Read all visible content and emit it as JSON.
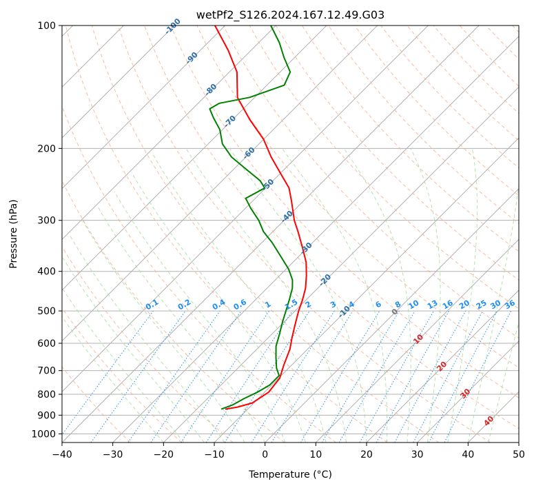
{
  "chart_data": {
    "type": "line",
    "title": "wetPf2_S126.2024.167.12.49.G03",
    "xlabel": "Temperature (°C)",
    "ylabel": "Pressure (hPa)",
    "xlim": [
      -40,
      50
    ],
    "ylim": [
      1050,
      100
    ],
    "y_scale": "log",
    "x_ticks": [
      -40,
      -30,
      -20,
      -10,
      0,
      10,
      20,
      30,
      40,
      50
    ],
    "y_ticks": [
      1000,
      900,
      800,
      700,
      600,
      500,
      400,
      300,
      200,
      100
    ],
    "grid": true,
    "colors": {
      "temperature": "#ff0000",
      "dewpoint": "#008000",
      "isotherm": "#9e9e9e",
      "dry_adiabat": "#f4a582",
      "moist_adiabat": "#a1d99b",
      "mixing_ratio": "#1f8ef0",
      "dry_adiabat_label": "#d62728",
      "isotherm_label": "#2b6ea8"
    },
    "series": [
      {
        "name": "Temperature",
        "color": "#ff0000",
        "points": [
          {
            "p": 870,
            "t": -14.4
          },
          {
            "p": 860,
            "t": -12.4
          },
          {
            "p": 840,
            "t": -10.3
          },
          {
            "p": 790,
            "t": -9.2
          },
          {
            "p": 730,
            "t": -9.8
          },
          {
            "p": 680,
            "t": -11.5
          },
          {
            "p": 620,
            "t": -13.5
          },
          {
            "p": 580,
            "t": -15.4
          },
          {
            "p": 540,
            "t": -17.3
          },
          {
            "p": 500,
            "t": -19.3
          },
          {
            "p": 470,
            "t": -20.7
          },
          {
            "p": 440,
            "t": -22.4
          },
          {
            "p": 410,
            "t": -24.7
          },
          {
            "p": 380,
            "t": -27.4
          },
          {
            "p": 350,
            "t": -31.0
          },
          {
            "p": 320,
            "t": -35.0
          },
          {
            "p": 300,
            "t": -38.0
          },
          {
            "p": 270,
            "t": -42.2
          },
          {
            "p": 250,
            "t": -45.4
          },
          {
            "p": 230,
            "t": -50.0
          },
          {
            "p": 210,
            "t": -55.0
          },
          {
            "p": 190,
            "t": -60.0
          },
          {
            "p": 170,
            "t": -66.6
          },
          {
            "p": 150,
            "t": -73.4
          },
          {
            "p": 130,
            "t": -78.5
          },
          {
            "p": 115,
            "t": -84.5
          },
          {
            "p": 100,
            "t": -92.0
          }
        ]
      },
      {
        "name": "Dewpoint",
        "color": "#008000",
        "points": [
          {
            "p": 870,
            "t": -15.2
          },
          {
            "p": 850,
            "t": -13.8
          },
          {
            "p": 820,
            "t": -12.8
          },
          {
            "p": 790,
            "t": -11.4
          },
          {
            "p": 760,
            "t": -10.4
          },
          {
            "p": 720,
            "t": -10.4
          },
          {
            "p": 690,
            "t": -12.4
          },
          {
            "p": 650,
            "t": -14.6
          },
          {
            "p": 610,
            "t": -16.8
          },
          {
            "p": 570,
            "t": -18.5
          },
          {
            "p": 530,
            "t": -20.4
          },
          {
            "p": 500,
            "t": -21.8
          },
          {
            "p": 470,
            "t": -23.3
          },
          {
            "p": 440,
            "t": -25.0
          },
          {
            "p": 420,
            "t": -26.6
          },
          {
            "p": 395,
            "t": -29.5
          },
          {
            "p": 370,
            "t": -33.2
          },
          {
            "p": 340,
            "t": -38.0
          },
          {
            "p": 320,
            "t": -41.8
          },
          {
            "p": 300,
            "t": -45.0
          },
          {
            "p": 280,
            "t": -49.0
          },
          {
            "p": 265,
            "t": -51.9
          },
          {
            "p": 250,
            "t": -50.2
          },
          {
            "p": 240,
            "t": -52.5
          },
          {
            "p": 225,
            "t": -57.5
          },
          {
            "p": 210,
            "t": -62.8
          },
          {
            "p": 195,
            "t": -67.2
          },
          {
            "p": 180,
            "t": -70.5
          },
          {
            "p": 168,
            "t": -74.2
          },
          {
            "p": 160,
            "t": -76.6
          },
          {
            "p": 155,
            "t": -75.8
          },
          {
            "p": 150,
            "t": -71.0
          },
          {
            "p": 140,
            "t": -66.6
          },
          {
            "p": 130,
            "t": -68.0
          },
          {
            "p": 120,
            "t": -72.0
          },
          {
            "p": 110,
            "t": -76.0
          },
          {
            "p": 100,
            "t": -81.0
          }
        ]
      }
    ],
    "isotherm_labels": [
      {
        "t": -100,
        "text": "-100"
      },
      {
        "t": -90,
        "text": "-90"
      },
      {
        "t": -80,
        "text": "-80"
      },
      {
        "t": -70,
        "text": "-70"
      },
      {
        "t": -60,
        "text": "-60"
      },
      {
        "t": -50,
        "text": "-50"
      },
      {
        "t": -40,
        "text": "-40"
      },
      {
        "t": -30,
        "text": "-30"
      },
      {
        "t": -20,
        "text": "-20"
      },
      {
        "t": -10,
        "text": "-10"
      },
      {
        "t": 0,
        "text": "0"
      },
      {
        "t": 10,
        "text": "10"
      },
      {
        "t": 20,
        "text": "20"
      },
      {
        "t": 30,
        "text": "30"
      },
      {
        "t": 40,
        "text": "40"
      }
    ],
    "mixing_ratio_labels": [
      "0.1",
      "0.2",
      "0.4",
      "0.6",
      "1",
      "1.5",
      "2",
      "3",
      "4",
      "6",
      "8",
      "10",
      "13",
      "16",
      "20",
      "25",
      "30",
      "36"
    ],
    "mixing_ratio_values": [
      0.1,
      0.2,
      0.4,
      0.6,
      1,
      1.5,
      2,
      3,
      4,
      6,
      8,
      10,
      13,
      16,
      20,
      25,
      30,
      36
    ]
  }
}
